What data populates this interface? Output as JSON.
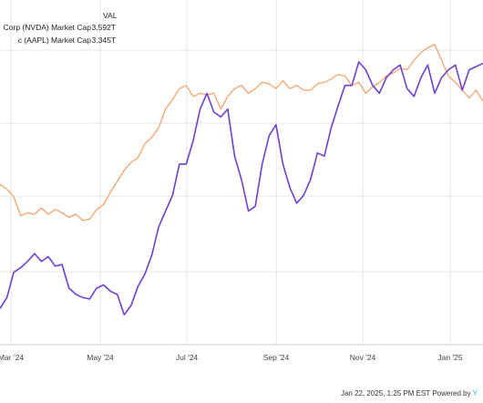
{
  "chart_data": {
    "type": "line",
    "legend": {
      "header": "VAL",
      "entries": [
        {
          "name": "Corp (NVDA) Market Cap",
          "value": "3.592T",
          "color": "#6e3fd6"
        },
        {
          "name": "c (AAPL) Market Cap",
          "value": "3.345T",
          "color": "#f4a26b"
        }
      ]
    },
    "x_tick_labels": [
      "Mar '24",
      "May '24",
      "Jul '24",
      "Sep '24",
      "Nov '24",
      "Jan '25"
    ],
    "series": [
      {
        "name": "Corp (NVDA) Market Cap",
        "color": "#6e3fd6",
        "values": [
          2.03,
          2.1,
          2.26,
          2.29,
          2.33,
          2.38,
          2.33,
          2.36,
          2.3,
          2.31,
          2.16,
          2.12,
          2.1,
          2.09,
          2.16,
          2.18,
          2.14,
          2.12,
          1.99,
          2.05,
          2.17,
          2.25,
          2.37,
          2.55,
          2.65,
          2.75,
          2.95,
          2.95,
          3.1,
          3.3,
          3.4,
          3.28,
          3.25,
          3.3,
          3.0,
          2.85,
          2.65,
          2.68,
          2.95,
          3.13,
          3.2,
          2.95,
          2.8,
          2.7,
          2.75,
          2.85,
          3.02,
          3.0,
          3.18,
          3.32,
          3.45,
          3.45,
          3.6,
          3.55,
          3.45,
          3.4,
          3.5,
          3.55,
          3.58,
          3.43,
          3.38,
          3.5,
          3.58,
          3.4,
          3.5,
          3.55,
          3.58,
          3.42,
          3.55,
          3.57,
          3.59
        ]
      },
      {
        "name": "c (AAPL) Market Cap",
        "color": "#f4a26b",
        "values": [
          2.82,
          2.79,
          2.74,
          2.62,
          2.64,
          2.63,
          2.67,
          2.63,
          2.66,
          2.64,
          2.61,
          2.63,
          2.59,
          2.6,
          2.66,
          2.69,
          2.77,
          2.84,
          2.91,
          2.96,
          2.99,
          3.08,
          3.12,
          3.18,
          3.3,
          3.36,
          3.43,
          3.45,
          3.38,
          3.4,
          3.39,
          3.4,
          3.3,
          3.38,
          3.43,
          3.45,
          3.4,
          3.43,
          3.47,
          3.46,
          3.43,
          3.48,
          3.43,
          3.45,
          3.42,
          3.42,
          3.46,
          3.47,
          3.49,
          3.52,
          3.51,
          3.45,
          3.47,
          3.4,
          3.44,
          3.47,
          3.51,
          3.53,
          3.56,
          3.55,
          3.61,
          3.66,
          3.69,
          3.71,
          3.61,
          3.51,
          3.47,
          3.42,
          3.37,
          3.42,
          3.35
        ]
      }
    ],
    "ylim": [
      1.8,
      3.95
    ],
    "grid": true,
    "legend_position": "top-left"
  },
  "footer": {
    "timestamp": "Jan 22, 2025, 1:25 PM EST",
    "powered_by": "Powered by",
    "logo_glyph": "Y"
  }
}
